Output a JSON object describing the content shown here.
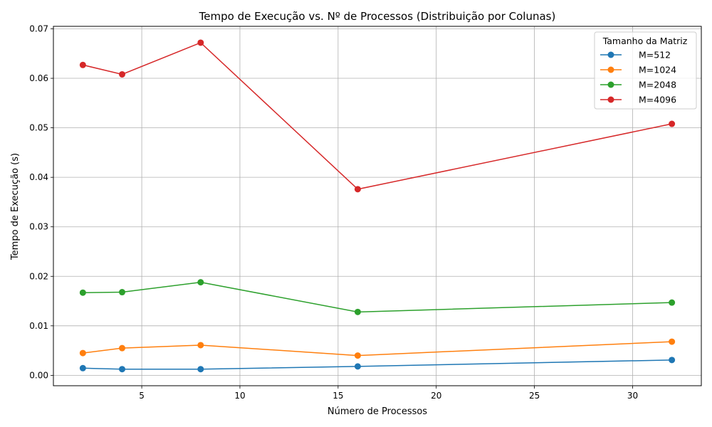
{
  "chart_data": {
    "type": "line",
    "title": "Tempo de Execução vs. Nº de Processos (Distribuição por Colunas)",
    "xlabel": "Número de Processos",
    "ylabel": "Tempo de Execução (s)",
    "xlim": [
      0.5,
      33.5
    ],
    "ylim": [
      -0.0021,
      0.0705
    ],
    "x_ticks": [
      5,
      10,
      15,
      20,
      25,
      30
    ],
    "x_tick_labels": [
      "5",
      "10",
      "15",
      "20",
      "25",
      "30"
    ],
    "y_ticks": [
      0.0,
      0.01,
      0.02,
      0.03,
      0.04,
      0.05,
      0.06,
      0.07
    ],
    "y_tick_labels": [
      "0.00",
      "0.01",
      "0.02",
      "0.03",
      "0.04",
      "0.05",
      "0.06",
      "0.07"
    ],
    "grid": true,
    "legend_title": "Tamanho da Matriz",
    "legend_position": "top-right",
    "x": [
      2,
      4,
      8,
      16,
      32
    ],
    "series": [
      {
        "name": "M=512",
        "color": "#1f77b4",
        "values": [
          0.00145,
          0.00125,
          0.00125,
          0.0018,
          0.0031
        ]
      },
      {
        "name": "M=1024",
        "color": "#ff7f0e",
        "values": [
          0.0045,
          0.0055,
          0.0061,
          0.004,
          0.0068
        ]
      },
      {
        "name": "M=2048",
        "color": "#2ca02c",
        "values": [
          0.0167,
          0.0168,
          0.0188,
          0.0128,
          0.0147
        ]
      },
      {
        "name": "M=4096",
        "color": "#d62728",
        "values": [
          0.0627,
          0.0608,
          0.0672,
          0.0376,
          0.0508
        ]
      }
    ]
  }
}
